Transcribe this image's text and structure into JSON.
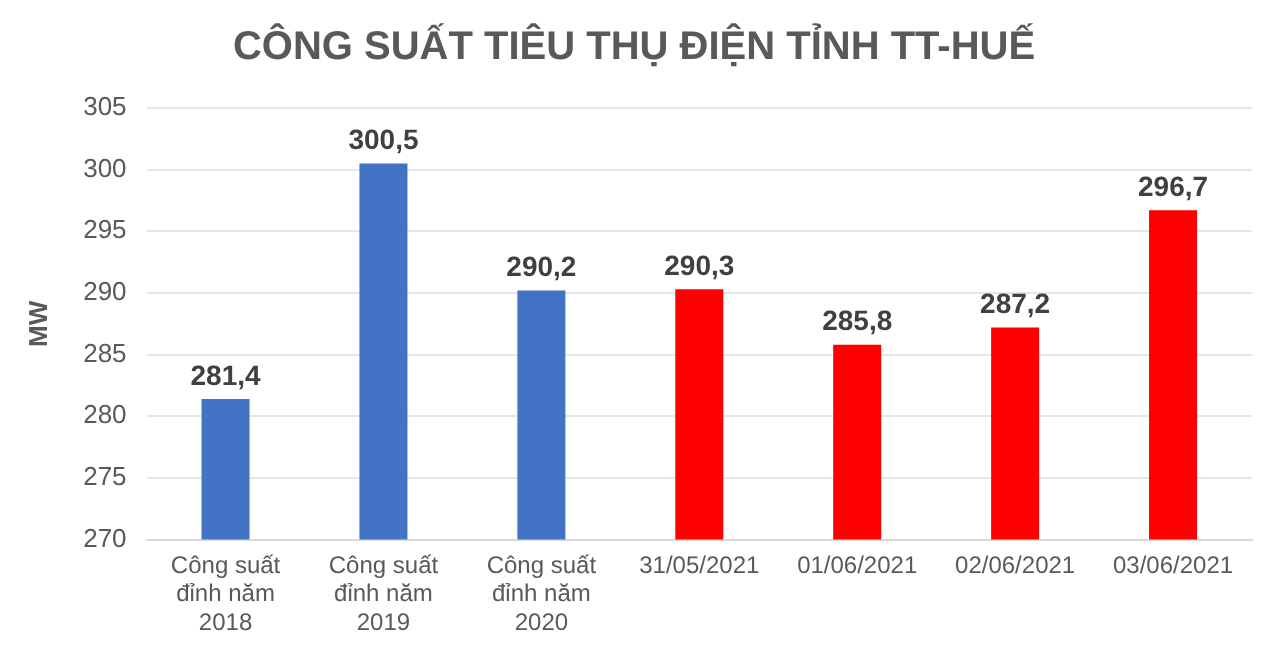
{
  "chart_data": {
    "type": "bar",
    "title": "CÔNG SUẤT TIÊU THỤ ĐIỆN TỈNH TT-HUẾ",
    "ylabel": "MW",
    "categories": [
      "Công suất đỉnh năm 2018",
      "Công suất đỉnh năm 2019",
      "Công suất đỉnh năm 2020",
      "31/05/2021",
      "01/06/2021",
      "02/06/2021",
      "03/06/2021"
    ],
    "values": [
      281.4,
      300.5,
      290.2,
      290.3,
      285.8,
      287.2,
      296.7
    ],
    "colors": [
      "#4472c4",
      "#4472c4",
      "#4472c4",
      "#ff0000",
      "#ff0000",
      "#ff0000",
      "#ff0000"
    ],
    "value_labels": [
      "281,4",
      "300,5",
      "290,2",
      "290,3",
      "285,8",
      "287,2",
      "296,7"
    ],
    "ylim": [
      270,
      305
    ],
    "yticks": [
      270,
      275,
      280,
      285,
      290,
      295,
      300,
      305
    ],
    "grid": "y"
  }
}
